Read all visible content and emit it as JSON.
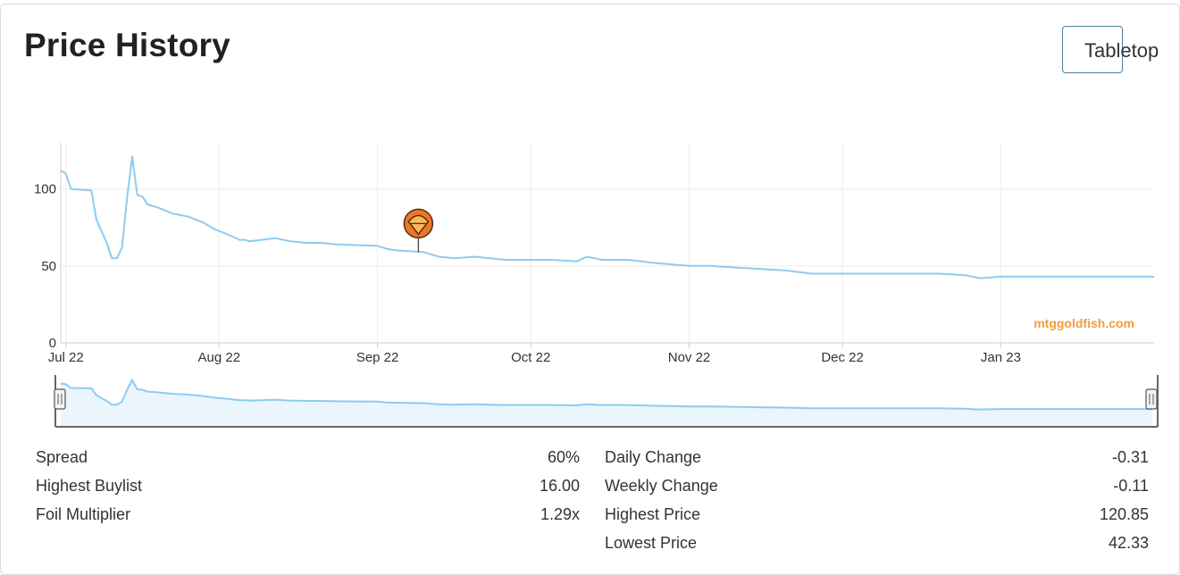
{
  "title": "Price History",
  "format_button": {
    "label": "Tabletop"
  },
  "watermark": "mtggoldfish.com",
  "colors": {
    "line": "#8ecbf0",
    "navigator_fill": "#eaf5fc",
    "event_marker": "#e8792b",
    "button_border": "#4a7fa0"
  },
  "icons": {
    "event_marker": "set-release-marker-icon"
  },
  "chart_data": {
    "type": "line",
    "title": "",
    "xlabel": "",
    "ylabel": "",
    "ylim": [
      0,
      130
    ],
    "yticks": [
      0,
      50,
      100
    ],
    "xlim": [
      "2022-07-01",
      "2023-01-31"
    ],
    "xticks": [
      {
        "date": "2022-07-02",
        "label": "Jul 22"
      },
      {
        "date": "2022-08-01",
        "label": "Aug 22"
      },
      {
        "date": "2022-09-01",
        "label": "Sep 22"
      },
      {
        "date": "2022-10-01",
        "label": "Oct 22"
      },
      {
        "date": "2022-11-01",
        "label": "Nov 22"
      },
      {
        "date": "2022-12-01",
        "label": "Dec 22"
      },
      {
        "date": "2023-01-01",
        "label": "Jan 23"
      }
    ],
    "grid": true,
    "legend": "none",
    "navigator": true,
    "event_markers": [
      {
        "date": "2022-09-09",
        "y": 59
      }
    ],
    "series": [
      {
        "x": [
          "2022-07-01",
          "2022-07-02",
          "2022-07-03",
          "2022-07-07",
          "2022-07-08",
          "2022-07-10",
          "2022-07-11",
          "2022-07-12",
          "2022-07-13",
          "2022-07-14",
          "2022-07-15",
          "2022-07-16",
          "2022-07-17",
          "2022-07-18",
          "2022-07-20",
          "2022-07-23",
          "2022-07-26",
          "2022-07-29",
          "2022-07-31",
          "2022-08-03",
          "2022-08-05",
          "2022-08-06",
          "2022-08-07",
          "2022-08-12",
          "2022-08-15",
          "2022-08-18",
          "2022-08-21",
          "2022-08-24",
          "2022-09-01",
          "2022-09-03",
          "2022-09-05",
          "2022-09-10",
          "2022-09-13",
          "2022-09-16",
          "2022-09-20",
          "2022-09-23",
          "2022-09-26",
          "2022-10-01",
          "2022-10-05",
          "2022-10-10",
          "2022-10-12",
          "2022-10-15",
          "2022-10-20",
          "2022-10-25",
          "2022-11-01",
          "2022-11-05",
          "2022-11-10",
          "2022-11-15",
          "2022-11-20",
          "2022-11-25",
          "2022-12-01",
          "2022-12-10",
          "2022-12-15",
          "2022-12-20",
          "2022-12-25",
          "2022-12-28",
          "2023-01-01",
          "2023-01-10",
          "2023-01-20",
          "2023-01-25",
          "2023-01-31"
        ],
        "y": [
          112,
          110,
          100,
          99,
          80,
          65,
          55,
          55,
          62,
          95,
          121,
          96,
          95,
          90,
          88,
          84,
          82,
          78,
          74,
          70,
          67,
          67,
          66,
          68,
          66,
          65,
          65,
          64,
          63,
          61,
          60,
          59,
          56,
          55,
          56,
          55,
          54,
          54,
          54,
          53,
          56,
          54,
          54,
          52,
          50,
          50,
          49,
          48,
          47,
          45,
          45,
          45,
          45,
          45,
          44,
          42,
          43,
          43,
          43,
          43,
          43
        ]
      }
    ]
  },
  "stats": {
    "left": [
      {
        "label": "Spread",
        "value": "60%"
      },
      {
        "label": "Highest Buylist",
        "value": "16.00"
      },
      {
        "label": "Foil Multiplier",
        "value": "1.29x"
      }
    ],
    "right": [
      {
        "label": "Daily Change",
        "value": "-0.31"
      },
      {
        "label": "Weekly Change",
        "value": "-0.11"
      },
      {
        "label": "Highest Price",
        "value": "120.85"
      },
      {
        "label": "Lowest Price",
        "value": "42.33"
      }
    ]
  }
}
